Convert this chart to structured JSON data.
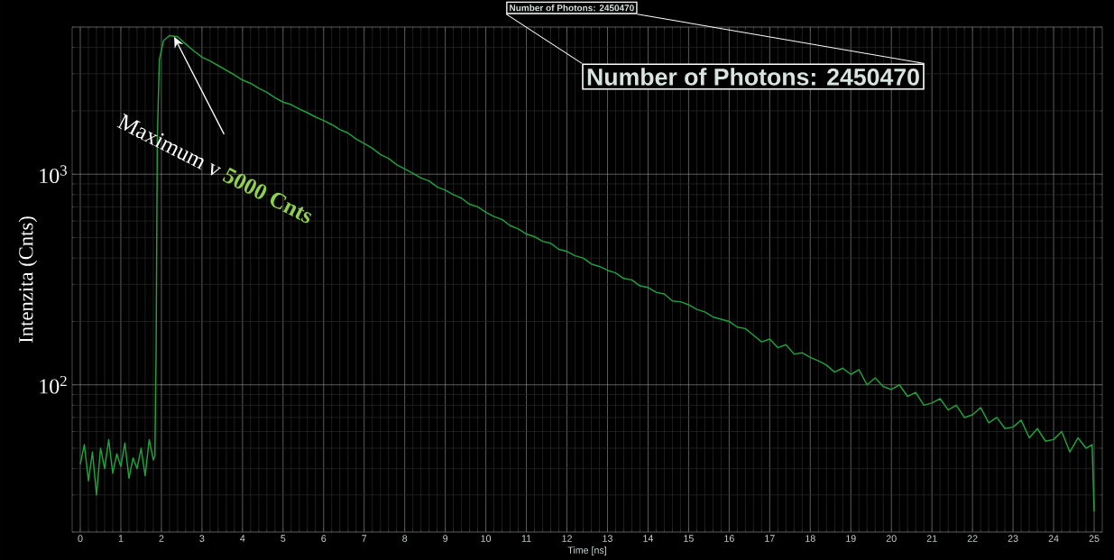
{
  "chart_data": {
    "type": "line",
    "title": "Number of Photons: 2450470",
    "xlabel": "Time [ns]",
    "ylabel": "Intenzita (Cnts)",
    "annotations": [
      {
        "text": "Maximum v",
        "x": 2.3,
        "y": 4550
      },
      "5000 Cnts",
      "Number of Photons: 2450470"
    ],
    "log": "y",
    "grid": true,
    "marker": "none",
    "line_style": "solid",
    "xlim": [
      -0.2,
      25.2
    ],
    "ylim": [
      20,
      5000
    ],
    "xticks": [
      0,
      1,
      2,
      3,
      4,
      5,
      6,
      7,
      8,
      9,
      10,
      11,
      12,
      13,
      14,
      15,
      16,
      17,
      18,
      19,
      20,
      21,
      22,
      23,
      24,
      25
    ],
    "yticks": [
      {
        "value": 100,
        "label": "10$^{2}$"
      },
      {
        "value": 1000,
        "label": "10$^{3}$"
      }
    ],
    "series": [
      {
        "color": "#22a03c",
        "x": [
          0,
          0.1,
          0.2,
          0.3,
          0.4,
          0.5,
          0.6,
          0.7,
          0.8,
          0.9,
          1.0,
          1.1,
          1.2,
          1.3,
          1.4,
          1.5,
          1.6,
          1.7,
          1.8,
          1.84,
          1.87,
          1.9,
          1.95,
          2.05,
          2.2,
          2.4,
          2.6,
          2.8,
          3.0,
          3.2,
          3.4,
          3.6,
          3.8,
          4.0,
          4.2,
          4.4,
          4.6,
          4.8,
          5.0,
          5.2,
          5.4,
          5.6,
          5.8,
          6.0,
          6.2,
          6.4,
          6.6,
          6.8,
          7.0,
          7.2,
          7.4,
          7.6,
          7.8,
          8.0,
          8.2,
          8.4,
          8.6,
          8.8,
          9.0,
          9.2,
          9.4,
          9.6,
          9.8,
          10.0,
          10.2,
          10.4,
          10.6,
          10.8,
          11.0,
          11.2,
          11.4,
          11.6,
          11.8,
          12.0,
          12.2,
          12.4,
          12.6,
          12.8,
          13.0,
          13.2,
          13.4,
          13.6,
          13.8,
          14.0,
          14.2,
          14.4,
          14.6,
          14.8,
          15.0,
          15.2,
          15.4,
          15.6,
          15.8,
          16.0,
          16.2,
          16.4,
          16.6,
          16.8,
          17.0,
          17.2,
          17.4,
          17.6,
          17.8,
          18.0,
          18.2,
          18.4,
          18.6,
          18.8,
          19.0,
          19.2,
          19.4,
          19.6,
          19.8,
          20.0,
          20.2,
          20.4,
          20.6,
          20.8,
          21.0,
          21.2,
          21.4,
          21.6,
          21.8,
          22.0,
          22.2,
          22.4,
          22.6,
          22.8,
          23.0,
          23.2,
          23.4,
          23.6,
          23.8,
          24.0,
          24.2,
          24.4,
          24.6,
          24.8,
          24.95,
          25.0
        ],
        "values": [
          42,
          52,
          35,
          48,
          30,
          50,
          40,
          55,
          38,
          47,
          41,
          53,
          36,
          45,
          40,
          50,
          37,
          55,
          44,
          46,
          150,
          1500,
          3500,
          4300,
          4550,
          4500,
          4150,
          3850,
          3600,
          3450,
          3280,
          3120,
          2960,
          2800,
          2700,
          2560,
          2450,
          2310,
          2200,
          2140,
          2040,
          1960,
          1870,
          1800,
          1720,
          1630,
          1570,
          1470,
          1400,
          1330,
          1240,
          1190,
          1110,
          1060,
          1010,
          960,
          930,
          870,
          840,
          800,
          770,
          720,
          700,
          660,
          630,
          610,
          570,
          550,
          520,
          505,
          480,
          470,
          440,
          430,
          410,
          400,
          375,
          365,
          350,
          340,
          320,
          315,
          295,
          290,
          275,
          270,
          250,
          248,
          240,
          228,
          222,
          210,
          205,
          200,
          188,
          185,
          172,
          160,
          165,
          150,
          155,
          140,
          142,
          135,
          130,
          124,
          115,
          120,
          112,
          118,
          100,
          108,
          98,
          95,
          100,
          88,
          92,
          80,
          82,
          86,
          76,
          80,
          70,
          72,
          78,
          66,
          70,
          62,
          63,
          68,
          56,
          62,
          54,
          55,
          60,
          48,
          56,
          50,
          52,
          25
        ]
      }
    ]
  }
}
